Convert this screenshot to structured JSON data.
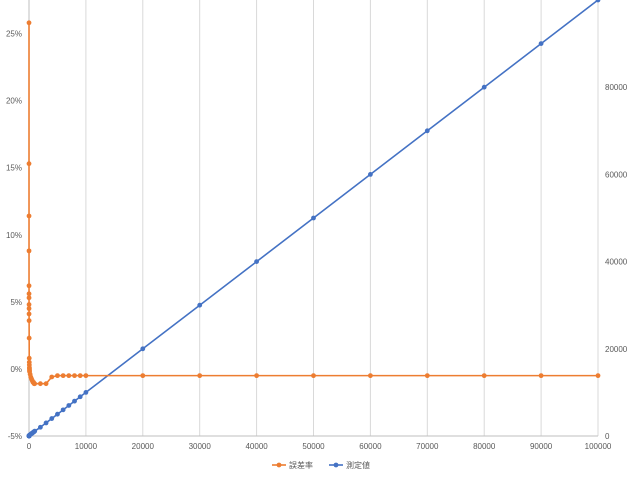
{
  "chart_data": {
    "type": "scatter",
    "title": "",
    "xlabel": "",
    "ylabel": "",
    "xlim": [
      0,
      100000
    ],
    "ylim_left": [
      -0.05,
      0.275
    ],
    "ylim_right": [
      0,
      100000
    ],
    "grid": "vertical",
    "legend_position": "bottom",
    "x_ticks": [
      0,
      10000,
      20000,
      30000,
      40000,
      50000,
      60000,
      70000,
      80000,
      90000,
      100000
    ],
    "x_tick_labels": [
      "0",
      "10000",
      "20000",
      "30000",
      "40000",
      "50000",
      "60000",
      "70000",
      "80000",
      "90000",
      "100000"
    ],
    "left_ticks": [
      -0.05,
      0,
      0.05,
      0.1,
      0.15,
      0.2,
      0.25
    ],
    "left_tick_labels": [
      "-5%",
      "0%",
      "5%",
      "10%",
      "15%",
      "20%",
      "25%"
    ],
    "right_ticks": [
      0,
      20000,
      40000,
      60000,
      80000
    ],
    "right_tick_labels": [
      "0",
      "20000",
      "40000",
      "60000",
      "80000"
    ],
    "series": [
      {
        "name": "誤差率",
        "axis": "left",
        "color": "#ED7D31",
        "x": [
          1,
          2,
          3,
          4,
          5,
          6,
          7,
          8,
          9,
          10,
          20,
          30,
          40,
          50,
          60,
          70,
          80,
          90,
          100,
          200,
          300,
          400,
          500,
          600,
          700,
          800,
          900,
          1000,
          2000,
          3000,
          4000,
          5000,
          6000,
          7000,
          8000,
          9000,
          10000,
          20000,
          30000,
          40000,
          50000,
          60000,
          70000,
          80000,
          90000,
          100000
        ],
        "y": [
          0.258,
          0.153,
          0.114,
          0.088,
          0.062,
          0.056,
          0.053,
          0.048,
          0.045,
          0.041,
          0.036,
          0.023,
          0.008,
          0.005,
          0.003,
          0.001,
          0.0,
          -0.001,
          -0.002,
          -0.004,
          -0.006,
          -0.007,
          -0.008,
          -0.009,
          -0.01,
          -0.01,
          -0.011,
          -0.011,
          -0.011,
          -0.011,
          -0.006,
          -0.005,
          -0.005,
          -0.005,
          -0.005,
          -0.005,
          -0.005,
          -0.005,
          -0.005,
          -0.005,
          -0.005,
          -0.005,
          -0.005,
          -0.005,
          -0.005,
          -0.005
        ]
      },
      {
        "name": "測定値",
        "axis": "right",
        "color": "#4472C4",
        "x": [
          1,
          2,
          3,
          4,
          5,
          6,
          7,
          8,
          9,
          10,
          20,
          30,
          40,
          50,
          60,
          70,
          80,
          90,
          100,
          200,
          300,
          400,
          500,
          600,
          700,
          800,
          900,
          1000,
          2000,
          3000,
          4000,
          5000,
          6000,
          7000,
          8000,
          9000,
          10000,
          20000,
          30000,
          40000,
          50000,
          60000,
          70000,
          80000,
          90000,
          100000
        ],
        "y": [
          1,
          2,
          3,
          4,
          5,
          6,
          7,
          8,
          9,
          10,
          30,
          50,
          70,
          90,
          120,
          140,
          160,
          180,
          200,
          300,
          400,
          500,
          600,
          700,
          800,
          900,
          1000,
          1100,
          2000,
          3000,
          4000,
          5000,
          6000,
          7000,
          8000,
          9000,
          10000,
          20000,
          30000,
          40000,
          50000,
          60000,
          70000,
          80000,
          90000,
          100000
        ]
      }
    ]
  }
}
